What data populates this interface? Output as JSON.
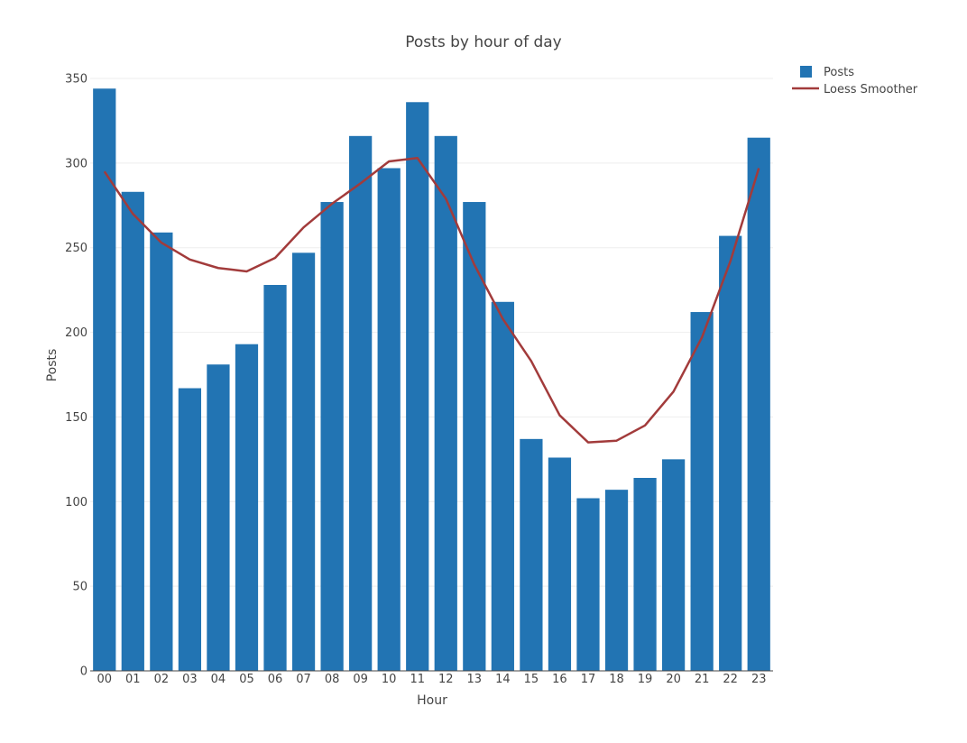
{
  "chart_data": {
    "type": "bar",
    "title": "Posts by hour of day",
    "xlabel": "Hour",
    "ylabel": "Posts",
    "ylim": [
      0,
      350
    ],
    "yticks": [
      0,
      50,
      100,
      150,
      200,
      250,
      300,
      350
    ],
    "categories": [
      "00",
      "01",
      "02",
      "03",
      "04",
      "05",
      "06",
      "07",
      "08",
      "09",
      "10",
      "11",
      "12",
      "13",
      "14",
      "15",
      "16",
      "17",
      "18",
      "19",
      "20",
      "21",
      "22",
      "23"
    ],
    "series": [
      {
        "name": "Posts",
        "type": "bar",
        "color": "#2274b3",
        "values": [
          344,
          283,
          259,
          167,
          181,
          193,
          228,
          247,
          277,
          316,
          297,
          336,
          316,
          277,
          218,
          137,
          126,
          102,
          107,
          114,
          125,
          212,
          257,
          315
        ]
      },
      {
        "name": "Loess Smoother",
        "type": "line",
        "color": "#a23b3b",
        "values": [
          295,
          270,
          253,
          243,
          238,
          236,
          244,
          262,
          276,
          288,
          301,
          303,
          279,
          240,
          208,
          183,
          151,
          135,
          136,
          145,
          165,
          197,
          242,
          297
        ]
      }
    ],
    "grid": true,
    "legend_position": "top-right"
  }
}
